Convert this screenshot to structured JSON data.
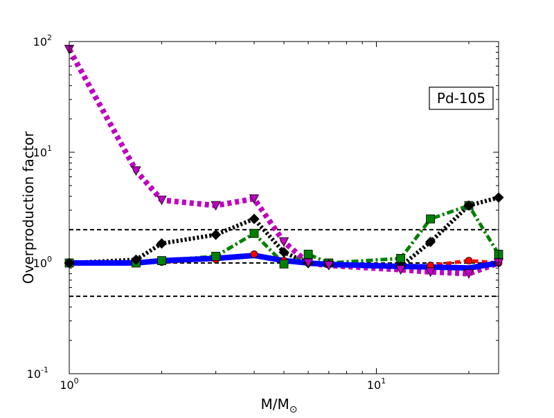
{
  "chart_data": {
    "type": "line",
    "xlabel": "M/M",
    "xlabel_sub": "⊙",
    "ylabel": "Overproduction factor",
    "xscale": "log",
    "yscale": "log",
    "xlim": [
      1,
      25
    ],
    "ylim": [
      0.1,
      100
    ],
    "x_ticks": [
      {
        "value": 1,
        "base": "10",
        "exp": "0"
      },
      {
        "value": 10,
        "base": "10",
        "exp": "1"
      }
    ],
    "y_ticks": [
      {
        "value": 0.1,
        "base": "10",
        "exp": "-1"
      },
      {
        "value": 1,
        "base": "10",
        "exp": "0"
      },
      {
        "value": 10,
        "base": "10",
        "exp": "1"
      },
      {
        "value": 100,
        "base": "10",
        "exp": "2"
      }
    ],
    "annotation": "Pd-105",
    "annotation_position": "top-right",
    "reference_lines": [
      0.5,
      1,
      2
    ],
    "series": [
      {
        "color": "#ff0000",
        "dash": "dashed",
        "marker": "circle",
        "x": [
          1,
          1.65,
          2,
          3,
          4,
          5,
          6,
          7,
          12,
          15,
          20,
          25
        ],
        "y": [
          1.0,
          1.0,
          1.02,
          1.08,
          1.2,
          1.05,
          1.0,
          0.97,
          0.93,
          0.95,
          1.05,
          1.0
        ]
      },
      {
        "color": "#0000ff",
        "dash": "solid",
        "marker": "none",
        "x": [
          1,
          1.65,
          2,
          3,
          4,
          5,
          6,
          7,
          12,
          15,
          20,
          25
        ],
        "y": [
          1.0,
          1.0,
          1.05,
          1.1,
          1.17,
          1.05,
          1.0,
          0.97,
          0.93,
          0.92,
          0.9,
          1.0
        ]
      },
      {
        "color": "#008000",
        "dash": "dashdot",
        "marker": "square",
        "x": [
          1,
          1.65,
          2,
          3,
          4,
          5,
          6,
          7,
          12,
          15,
          20,
          25
        ],
        "y": [
          1.0,
          1.0,
          1.05,
          1.15,
          1.85,
          0.98,
          1.2,
          1.0,
          1.1,
          2.5,
          3.3,
          1.2
        ]
      },
      {
        "color": "#000000",
        "dash": "dotted",
        "marker": "diamond",
        "x": [
          1,
          1.65,
          2,
          3,
          4,
          5,
          6,
          7,
          12,
          15,
          20,
          25
        ],
        "y": [
          1.0,
          1.07,
          1.5,
          1.8,
          2.5,
          1.25,
          1.0,
          0.97,
          0.93,
          1.55,
          3.3,
          3.9
        ]
      },
      {
        "color": "#bf00bf",
        "dash": "dotted",
        "marker": "triangle-down",
        "x": [
          1,
          1.65,
          2,
          3,
          4,
          5,
          6,
          7,
          12,
          15,
          20,
          25
        ],
        "y": [
          85,
          6.8,
          3.7,
          3.3,
          3.8,
          1.55,
          1.0,
          0.95,
          0.87,
          0.83,
          0.8,
          1.0
        ]
      }
    ]
  }
}
